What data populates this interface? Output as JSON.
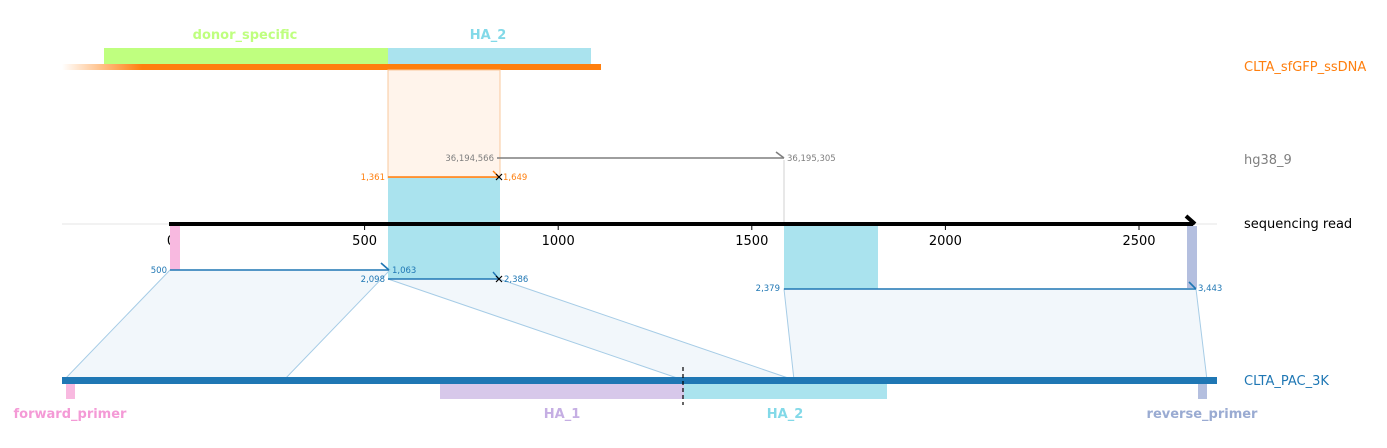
{
  "colors": {
    "donor": "#ff7f0e",
    "genome": "#7f7f7f",
    "read": "#000000",
    "target": "#1f77b4",
    "donor_specific": "#bfff7f",
    "ha": "#aae3ee",
    "ha1": "#d7c8ea",
    "forward_primer": "#f8b9e0",
    "reverse_primer": "#b4bfdf",
    "donor_specific_text": "#bfff7f",
    "ha_text": "#82d9e8",
    "ha1_text": "#c5aee3",
    "forward_primer_text": "#f49ad6",
    "reverse_primer_text": "#9aabd2"
  },
  "tracks": {
    "donor": "CLTA_sfGFP_ssDNA",
    "genome": "hg38_9",
    "read": "sequencing read",
    "target": "CLTA_PAC_3K"
  },
  "donor_features": {
    "donor_specific": "donor_specific",
    "ha_2": "HA_2"
  },
  "target_features": {
    "forward_primer": "forward_primer",
    "ha_1": "HA_1",
    "ha_2": "HA_2",
    "reverse_primer": "reverse_primer"
  },
  "read_axis": {
    "ticks": [
      "0",
      "500",
      "1000",
      "1500",
      "2000",
      "2500"
    ],
    "tick_values": [
      0,
      500,
      1000,
      1500,
      2000,
      2500
    ],
    "read_length": 2650
  },
  "alignments": {
    "donor": {
      "read_start": 565,
      "read_end": 848,
      "ref_start": "1,361",
      "ref_end": "1,649"
    },
    "genome": {
      "read_start": 845,
      "read_end": 1585,
      "ref_start": "36,194,566",
      "ref_end": "36,195,305"
    },
    "target_1": {
      "read_start": 0,
      "read_end": 565,
      "ref_start": "500",
      "ref_end": "1,063"
    },
    "target_2": {
      "read_start": 565,
      "read_end": 848,
      "ref_start": "2,098",
      "ref_end": "2,386"
    },
    "target_3": {
      "read_start": 1585,
      "read_end": 2650,
      "ref_start": "2,379",
      "ref_end": "3,443"
    }
  }
}
